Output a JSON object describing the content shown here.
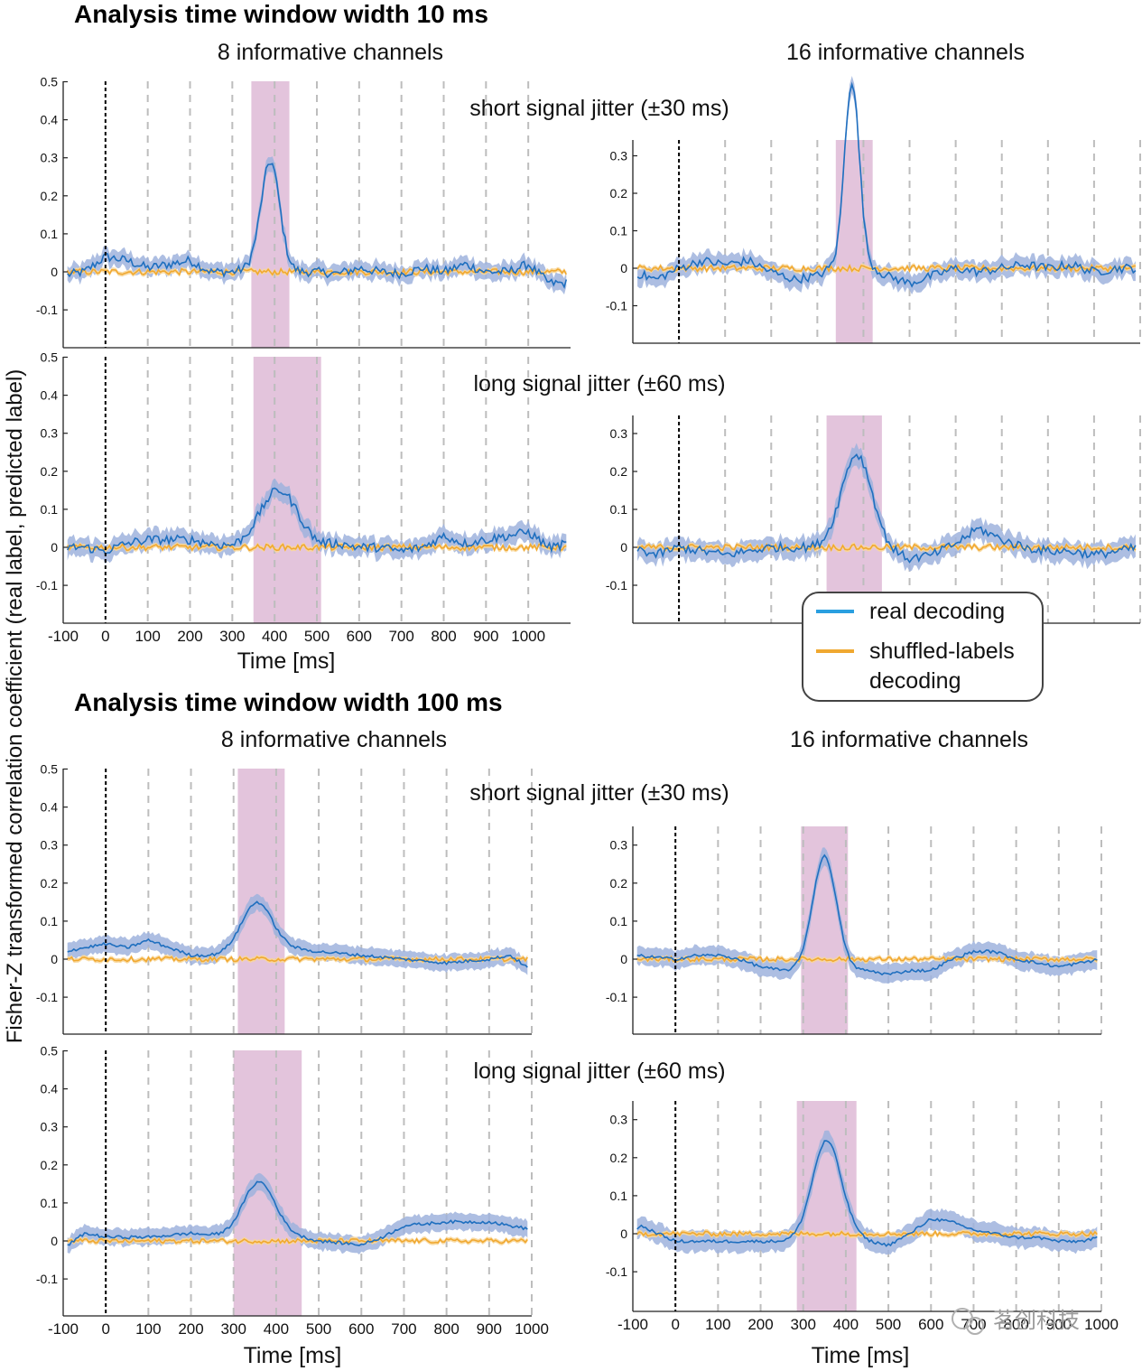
{
  "figure": {
    "ylabel": "Fisher-Z transformed correlation coefficient (real label, predicted label)",
    "xlabel": "Time [ms]",
    "watermark": "茗创科技",
    "colors": {
      "real": "#1f6fbf",
      "real_band": "#9fb3dd",
      "shuffled": "#f0a830",
      "shuffled_band": "#f8d79a",
      "highlight": "#e3c4dc",
      "grid": "#bdbdbd",
      "onset": "#000000"
    }
  },
  "sections": [
    {
      "title": "Analysis time window width 10 ms"
    },
    {
      "title": "Analysis time window width 100 ms"
    }
  ],
  "columns": [
    {
      "title": "8 informative channels"
    },
    {
      "title": "16 informative channels"
    }
  ],
  "jitter_titles": [
    "short signal jitter (±30 ms)",
    "long signal jitter (±60 ms)"
  ],
  "legend": {
    "real": "real decoding",
    "shuffled_line1": "shuffled-labels",
    "shuffled_line2": "decoding"
  },
  "chart_data": [
    {
      "type": "line",
      "section": "10 ms",
      "channels": 8,
      "jitter": "short",
      "xlim": [
        -100,
        1100
      ],
      "ylim": [
        -0.19,
        0.5
      ],
      "yticks": [
        -0.1,
        0,
        0.1,
        0.2,
        0.3,
        0.4,
        0.5
      ],
      "xticks": [
        -100,
        0,
        100,
        200,
        300,
        400,
        500,
        600,
        700,
        800,
        900,
        1000
      ],
      "highlight": [
        345,
        435
      ],
      "peak_time": 390,
      "peak": 0.29,
      "peak_width": 22,
      "band": 0.018,
      "real": {
        "x": [
          -100,
          -50,
          0,
          50,
          100,
          150,
          200,
          250,
          300,
          350,
          380,
          500,
          550,
          600,
          650,
          700,
          750,
          800,
          850,
          900,
          950,
          1000,
          1050,
          1100
        ],
        "y": [
          -0.01,
          0.0,
          0.04,
          0.03,
          0.01,
          0.02,
          0.03,
          0.0,
          0.0,
          0.01,
          0.0,
          0.0,
          -0.005,
          0.01,
          0.0,
          -0.005,
          0.01,
          0.0,
          0.02,
          0.0,
          0.0,
          0.02,
          -0.03,
          -0.03
        ]
      },
      "shuffled": {
        "x": [
          -100,
          1100
        ],
        "y": [
          0,
          0
        ]
      }
    },
    {
      "type": "line",
      "section": "10 ms",
      "channels": 16,
      "jitter": "short",
      "xlim": [
        -100,
        1000
      ],
      "ylim": [
        -0.19,
        0.34
      ],
      "yticks": [
        -0.1,
        0,
        0.1,
        0.2,
        0.3
      ],
      "xticks": [
        -100,
        0,
        100,
        200,
        300,
        400,
        500,
        600,
        700,
        800,
        900,
        1000
      ],
      "highlight": [
        340,
        420
      ],
      "peak_time": 375,
      "peak": 0.5,
      "peak_width": 16,
      "band": 0.02,
      "real": {
        "x": [
          -100,
          -50,
          0,
          50,
          100,
          150,
          200,
          250,
          300,
          330,
          380,
          420,
          450,
          500,
          550,
          600,
          650,
          700,
          750,
          800,
          850,
          900,
          950,
          1000
        ],
        "y": [
          -0.01,
          -0.03,
          0.0,
          0.02,
          0.01,
          0.02,
          -0.01,
          -0.03,
          -0.02,
          0.0,
          0.0,
          0.0,
          -0.02,
          -0.04,
          -0.02,
          0.0,
          -0.01,
          0.0,
          0.01,
          0.0,
          0.01,
          -0.01,
          0.0,
          0.0
        ]
      },
      "shuffled": {
        "x": [
          -100,
          1000
        ],
        "y": [
          0,
          0
        ]
      }
    },
    {
      "type": "line",
      "section": "10 ms",
      "channels": 8,
      "jitter": "long",
      "xlim": [
        -100,
        1100
      ],
      "ylim": [
        -0.19,
        0.5
      ],
      "yticks": [
        -0.1,
        0,
        0.1,
        0.2,
        0.3,
        0.4,
        0.5
      ],
      "xticks": [
        -100,
        0,
        100,
        200,
        300,
        400,
        500,
        600,
        700,
        800,
        900,
        1000
      ],
      "highlight": [
        350,
        510
      ],
      "peak_time": 410,
      "peak": 0.15,
      "peak_width": 45,
      "band": 0.02,
      "real": {
        "x": [
          -100,
          -50,
          0,
          50,
          100,
          150,
          200,
          250,
          300,
          350,
          450,
          500,
          550,
          600,
          650,
          700,
          750,
          800,
          850,
          900,
          950,
          1000,
          1050,
          1100
        ],
        "y": [
          0.0,
          0.0,
          -0.01,
          0.01,
          0.02,
          0.02,
          0.02,
          0.01,
          0.0,
          0.0,
          0.0,
          0.0,
          0.01,
          0.0,
          0.0,
          -0.01,
          0.0,
          0.03,
          0.01,
          0.02,
          0.03,
          0.04,
          0.0,
          0.01
        ]
      },
      "shuffled": {
        "x": [
          -100,
          1100
        ],
        "y": [
          0,
          0
        ]
      }
    },
    {
      "type": "line",
      "section": "10 ms",
      "channels": 16,
      "jitter": "long",
      "xlim": [
        -100,
        1000
      ],
      "ylim": [
        -0.19,
        0.34
      ],
      "yticks": [
        -0.1,
        0,
        0.1,
        0.2,
        0.3
      ],
      "xticks": [
        -100,
        0,
        100,
        200,
        300,
        400,
        500,
        600,
        700,
        800,
        900,
        1000
      ],
      "highlight": [
        320,
        440
      ],
      "peak_time": 385,
      "peak": 0.245,
      "peak_width": 33,
      "band": 0.022,
      "real": {
        "x": [
          -100,
          -50,
          0,
          50,
          100,
          150,
          200,
          250,
          300,
          350,
          420,
          450,
          500,
          550,
          600,
          650,
          700,
          750,
          800,
          850,
          900,
          950,
          1000
        ],
        "y": [
          0.0,
          -0.02,
          0.0,
          -0.01,
          -0.02,
          -0.01,
          0.0,
          0.0,
          0.0,
          0.0,
          0.0,
          -0.01,
          -0.03,
          -0.02,
          0.01,
          0.05,
          0.02,
          0.0,
          -0.01,
          -0.01,
          -0.02,
          -0.01,
          0.0
        ]
      },
      "shuffled": {
        "x": [
          -100,
          1000
        ],
        "y": [
          0,
          0
        ]
      }
    },
    {
      "type": "line",
      "section": "100 ms",
      "channels": 8,
      "jitter": "short",
      "xlim": [
        -100,
        1000
      ],
      "ylim": [
        -0.19,
        0.5
      ],
      "yticks": [
        -0.1,
        0,
        0.1,
        0.2,
        0.3,
        0.4,
        0.5
      ],
      "xticks": [
        -100,
        0,
        100,
        200,
        300,
        400,
        500,
        600,
        700,
        800,
        900,
        1000
      ],
      "highlight": [
        310,
        420
      ],
      "peak_time": 355,
      "peak": 0.125,
      "peak_width": 35,
      "band": 0.018,
      "real": {
        "x": [
          -100,
          0,
          50,
          100,
          150,
          200,
          250,
          300,
          420,
          500,
          600,
          700,
          800,
          900,
          950,
          1000
        ],
        "y": [
          0.02,
          0.04,
          0.03,
          0.05,
          0.03,
          0.01,
          0.01,
          0.02,
          0.03,
          0.02,
          0.01,
          0.0,
          -0.01,
          0.0,
          0.01,
          -0.03
        ]
      },
      "shuffled": {
        "x": [
          -100,
          1000
        ],
        "y": [
          0,
          0
        ]
      }
    },
    {
      "type": "line",
      "section": "100 ms",
      "channels": 16,
      "jitter": "short",
      "xlim": [
        -100,
        1000
      ],
      "ylim": [
        -0.19,
        0.34
      ],
      "yticks": [
        -0.1,
        0,
        0.1,
        0.2,
        0.3
      ],
      "xticks": [
        -100,
        0,
        100,
        200,
        300,
        400,
        500,
        600,
        700,
        800,
        900,
        1000
      ],
      "highlight": [
        295,
        405
      ],
      "peak_time": 350,
      "peak": 0.3,
      "peak_width": 28,
      "band": 0.02,
      "real": {
        "x": [
          -100,
          0,
          50,
          100,
          150,
          200,
          250,
          300,
          400,
          450,
          500,
          550,
          600,
          650,
          700,
          750,
          800,
          850,
          900,
          950,
          1000
        ],
        "y": [
          0.01,
          0.0,
          0.01,
          0.01,
          0.0,
          -0.02,
          -0.03,
          -0.03,
          -0.03,
          -0.03,
          -0.04,
          -0.03,
          -0.03,
          0.0,
          0.02,
          0.02,
          0.0,
          -0.01,
          -0.02,
          -0.01,
          0.0
        ]
      },
      "shuffled": {
        "x": [
          -100,
          1000
        ],
        "y": [
          0,
          0
        ]
      }
    },
    {
      "type": "line",
      "section": "100 ms",
      "channels": 8,
      "jitter": "long",
      "xlim": [
        -100,
        1000
      ],
      "ylim": [
        -0.19,
        0.5
      ],
      "yticks": [
        -0.1,
        0,
        0.1,
        0.2,
        0.3,
        0.4,
        0.5
      ],
      "xticks": [
        -100,
        0,
        100,
        200,
        300,
        400,
        500,
        600,
        700,
        800,
        900,
        1000
      ],
      "highlight": [
        300,
        460
      ],
      "peak_time": 360,
      "peak": 0.145,
      "peak_width": 38,
      "band": 0.018,
      "real": {
        "x": [
          -100,
          -50,
          0,
          100,
          200,
          300,
          450,
          500,
          600,
          650,
          700,
          800,
          900,
          1000
        ],
        "y": [
          -0.02,
          0.02,
          0.01,
          0.01,
          0.02,
          0.01,
          0.01,
          0.0,
          -0.01,
          0.01,
          0.04,
          0.05,
          0.05,
          0.03
        ]
      },
      "shuffled": {
        "x": [
          -100,
          1000
        ],
        "y": [
          0,
          0
        ]
      }
    },
    {
      "type": "line",
      "section": "100 ms",
      "channels": 16,
      "jitter": "long",
      "xlim": [
        -100,
        1000
      ],
      "ylim": [
        -0.19,
        0.34
      ],
      "yticks": [
        -0.1,
        0,
        0.1,
        0.2,
        0.3
      ],
      "xticks": [
        -100,
        0,
        100,
        200,
        300,
        400,
        500,
        600,
        700,
        800,
        900,
        1000
      ],
      "highlight": [
        285,
        425
      ],
      "peak_time": 355,
      "peak": 0.26,
      "peak_width": 34,
      "band": 0.022,
      "real": {
        "x": [
          -100,
          -80,
          0,
          100,
          200,
          250,
          300,
          420,
          450,
          500,
          550,
          600,
          650,
          700,
          750,
          800,
          850,
          900,
          950,
          1000
        ],
        "y": [
          0.01,
          0.02,
          -0.02,
          -0.02,
          -0.02,
          -0.02,
          -0.02,
          -0.01,
          -0.02,
          -0.03,
          0.0,
          0.04,
          0.03,
          0.01,
          0.0,
          -0.01,
          -0.01,
          -0.02,
          -0.02,
          -0.01
        ]
      },
      "shuffled": {
        "x": [
          -100,
          1000
        ],
        "y": [
          0,
          0
        ]
      }
    }
  ]
}
